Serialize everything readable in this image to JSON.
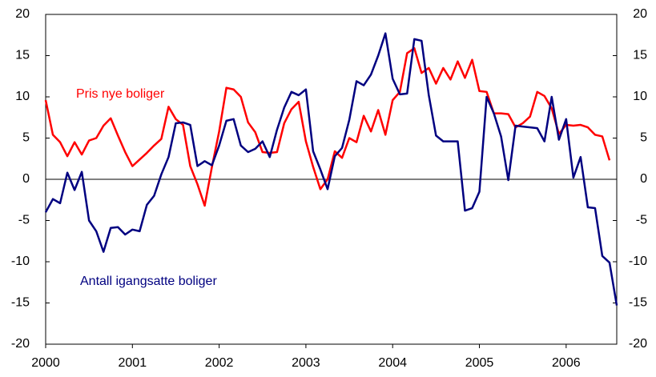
{
  "chart_data": {
    "type": "line",
    "annotations": [
      {
        "text": "Pris nye boliger",
        "color": "#ff0000"
      },
      {
        "text": "Antall igangsatte boliger",
        "color": "#000080"
      }
    ],
    "categories": [
      "2000",
      null,
      null,
      null,
      null,
      null,
      null,
      null,
      null,
      null,
      null,
      null,
      "2001",
      null,
      null,
      null,
      null,
      null,
      null,
      null,
      null,
      null,
      null,
      null,
      "2002",
      null,
      null,
      null,
      null,
      null,
      null,
      null,
      null,
      null,
      null,
      null,
      "2003",
      null,
      null,
      null,
      null,
      null,
      null,
      null,
      null,
      null,
      null,
      null,
      "2004",
      null,
      null,
      null,
      null,
      null,
      null,
      null,
      null,
      null,
      null,
      null,
      "2005",
      null,
      null,
      null,
      null,
      null,
      null,
      null,
      null,
      null,
      null,
      null,
      "2006",
      null,
      null,
      null,
      null,
      null,
      null,
      null
    ],
    "series": [
      {
        "name": "Pris nye boliger",
        "color": "#ff0000",
        "values": [
          9.6,
          5.4,
          4.5,
          2.8,
          4.5,
          3.0,
          4.7,
          5.0,
          6.5,
          7.4,
          5.3,
          3.3,
          1.6,
          2.4,
          3.2,
          4.1,
          4.9,
          8.8,
          7.3,
          6.6,
          1.6,
          -0.6,
          -3.2,
          1.5,
          5.8,
          11.1,
          10.9,
          10.0,
          6.9,
          5.7,
          3.3,
          3.2,
          3.3,
          6.8,
          8.5,
          9.4,
          4.6,
          1.5,
          -1.2,
          0.0,
          3.4,
          2.6,
          5.0,
          4.5,
          7.7,
          5.8,
          8.4,
          5.4,
          9.6,
          10.6,
          15.3,
          15.9,
          12.9,
          13.5,
          11.6,
          13.5,
          12.1,
          14.3,
          12.3,
          14.5,
          10.7,
          10.6,
          8.0,
          8.0,
          7.9,
          6.3,
          6.8,
          7.6,
          10.6,
          10.1,
          8.6,
          5.5,
          6.6,
          6.5,
          6.6,
          6.3,
          5.4,
          5.2,
          2.3,
          null
        ]
      },
      {
        "name": "Antall igangsatte boliger",
        "color": "#000080",
        "values": [
          -4.0,
          -2.4,
          -2.9,
          0.8,
          -1.3,
          0.9,
          -5.0,
          -6.3,
          -8.8,
          -5.9,
          -5.8,
          -6.7,
          -6.1,
          -6.3,
          -3.1,
          -2.0,
          0.6,
          2.7,
          6.8,
          6.9,
          6.6,
          1.6,
          2.2,
          1.7,
          4.1,
          7.1,
          7.3,
          4.1,
          3.3,
          3.7,
          4.6,
          2.7,
          6.0,
          8.7,
          10.6,
          10.2,
          10.9,
          3.4,
          1.2,
          -1.2,
          2.8,
          3.8,
          7.2,
          11.9,
          11.4,
          12.7,
          15.0,
          17.7,
          12.2,
          10.3,
          10.4,
          17.0,
          16.8,
          10.2,
          5.3,
          4.6,
          4.6,
          4.6,
          -3.8,
          -3.5,
          -1.5,
          10.0,
          8.0,
          5.2,
          -0.1,
          6.5,
          6.4,
          6.3,
          6.2,
          4.6,
          10.0,
          4.8,
          7.3,
          0.2,
          2.7,
          -3.4,
          -3.5,
          -9.3,
          -10.1,
          -15.3
        ]
      }
    ],
    "ylim": [
      -20,
      20
    ],
    "yticks": [
      -20,
      -15,
      -10,
      -5,
      0,
      5,
      10,
      15,
      20
    ],
    "y2lim": [
      -20,
      20
    ],
    "y2ticks": [
      -20,
      -15,
      -10,
      -5,
      0,
      5,
      10,
      15,
      20
    ]
  }
}
